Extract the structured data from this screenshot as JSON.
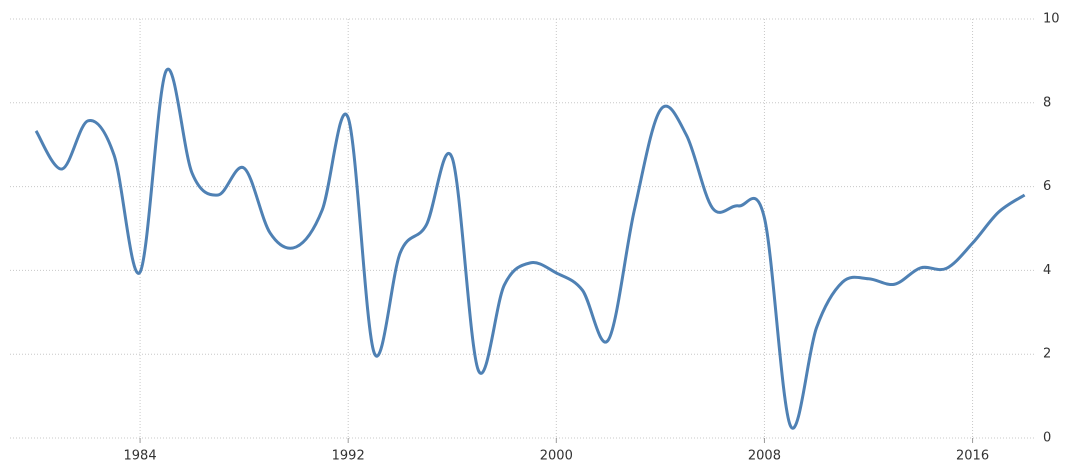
{
  "chart_data": {
    "type": "line",
    "x": [
      1980,
      1981,
      1982,
      1983,
      1984,
      1985,
      1986,
      1987,
      1988,
      1989,
      1990,
      1991,
      1992,
      1993,
      1994,
      1995,
      1996,
      1997,
      1998,
      1999,
      2000,
      2001,
      2002,
      2003,
      2004,
      2005,
      2006,
      2007,
      2008,
      2009,
      2010,
      2011,
      2012,
      2013,
      2014,
      2015,
      2016,
      2017,
      2018
    ],
    "series": [
      {
        "color": "#4f81b4",
        "values": [
          7.33,
          6.42,
          7.57,
          6.75,
          3.96,
          8.76,
          6.32,
          5.8,
          6.44,
          4.89,
          4.56,
          5.44,
          7.64,
          2.03,
          4.42,
          5.08,
          6.68,
          1.62,
          3.65,
          4.18,
          3.94,
          3.53,
          2.34,
          5.44,
          7.83,
          7.23,
          5.49,
          5.54,
          5.25,
          0.29,
          2.63,
          3.72,
          3.8,
          3.67,
          4.06,
          4.05,
          4.65,
          5.39,
          5.8
        ]
      }
    ],
    "xlim": [
      1979,
      2018.4
    ],
    "xticks": [
      1984,
      1992,
      2000,
      2008,
      2016
    ],
    "ylim": [
      0,
      10
    ],
    "yticks": [
      0,
      2,
      4,
      6,
      8,
      10
    ],
    "grid": true
  }
}
